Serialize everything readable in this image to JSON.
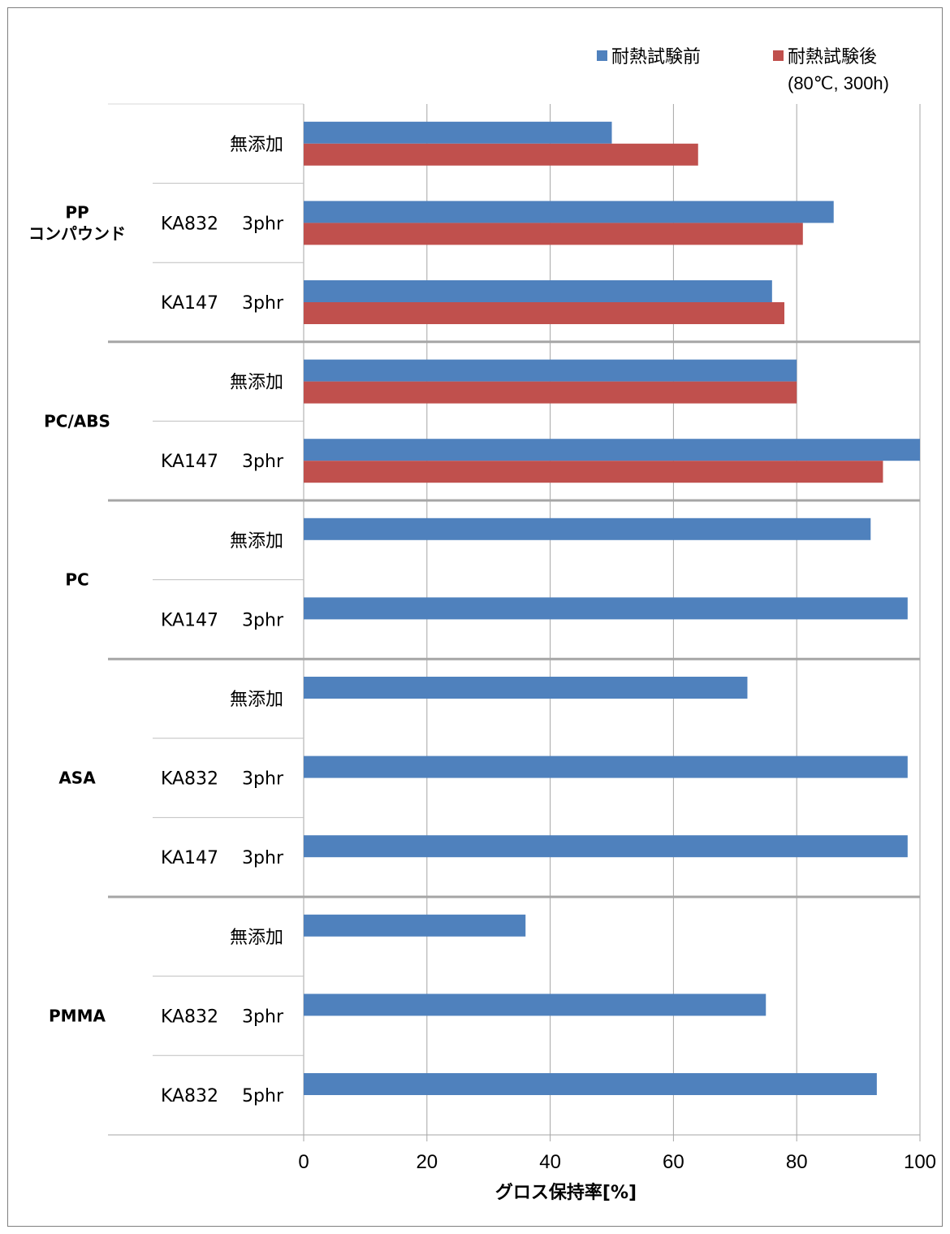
{
  "chart_data": {
    "type": "bar",
    "orientation": "horizontal",
    "xlabel": "グロス保持率[%]",
    "xlim": [
      0,
      100
    ],
    "xticks": [
      0,
      20,
      40,
      60,
      80,
      100
    ],
    "grid": "vertical",
    "legend_position": "top-right",
    "legend": [
      {
        "label": "耐熱試験前",
        "sublabel": "",
        "color": "#4F81BD"
      },
      {
        "label": "耐熱試験後",
        "sublabel": "(80℃, 300h)",
        "color": "#C0504D"
      }
    ],
    "groups": [
      {
        "name": "PP\nコンパウンド",
        "rows": [
          {
            "label": "無添加",
            "before": 50,
            "after": 64
          },
          {
            "label": "KA832　 3phr",
            "before": 86,
            "after": 81
          },
          {
            "label": "KA147　 3phr",
            "before": 76,
            "after": 78
          }
        ]
      },
      {
        "name": "PC/ABS",
        "rows": [
          {
            "label": "無添加",
            "before": 80,
            "after": 80
          },
          {
            "label": "KA147　 3phr",
            "before": 100,
            "after": 94
          }
        ]
      },
      {
        "name": "PC",
        "rows": [
          {
            "label": "無添加",
            "before": 92,
            "after": null
          },
          {
            "label": "KA147　 3phr",
            "before": 98,
            "after": null
          }
        ]
      },
      {
        "name": "ASA",
        "rows": [
          {
            "label": "無添加",
            "before": 72,
            "after": null
          },
          {
            "label": "KA832　 3phr",
            "before": 98,
            "after": null
          },
          {
            "label": "KA147　 3phr",
            "before": 98,
            "after": null
          }
        ]
      },
      {
        "name": "PMMA",
        "rows": [
          {
            "label": "無添加",
            "before": 36,
            "after": null
          },
          {
            "label": "KA832　 3phr",
            "before": 75,
            "after": null
          },
          {
            "label": "KA832　 5phr",
            "before": 93,
            "after": null
          }
        ]
      }
    ]
  }
}
